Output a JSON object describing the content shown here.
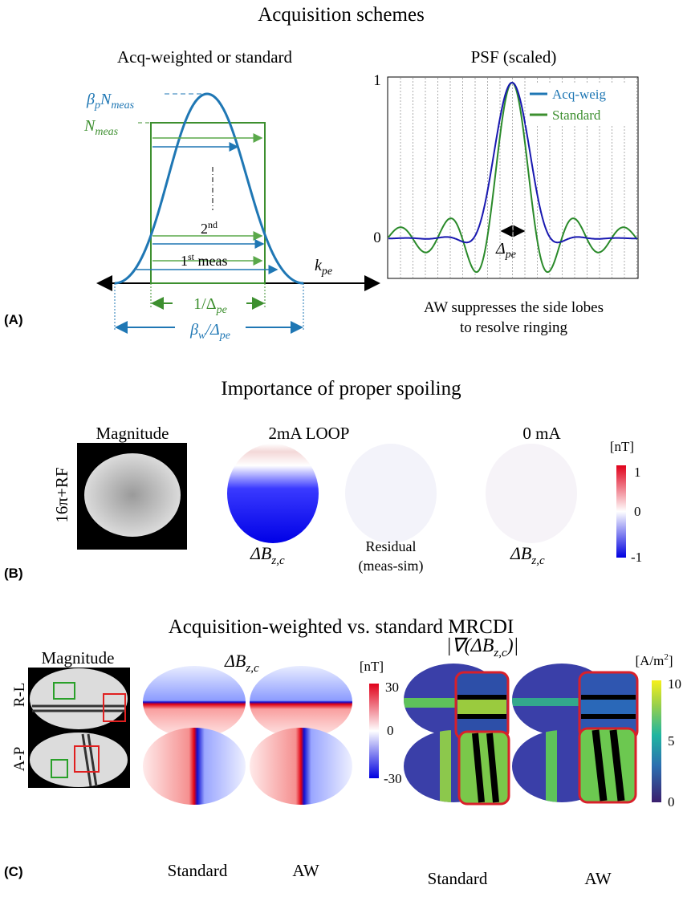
{
  "panel_a": {
    "label": "(A)",
    "title": "Acquisition schemes",
    "scheme": {
      "title": "Acq-weighted or standard",
      "peak_label": [
        "β",
        "p",
        "N",
        "meas"
      ],
      "flat_label": [
        "N",
        "meas"
      ],
      "second": [
        "2",
        "nd"
      ],
      "first": [
        "1",
        "st",
        " meas"
      ],
      "axis_label": [
        "k",
        "pe"
      ],
      "standard_width": [
        "1/Δ",
        "pe"
      ],
      "aw_width": [
        "β",
        "w",
        "/Δ",
        "pe"
      ]
    },
    "psf": {
      "title": "PSF (scaled)",
      "yticks": [
        "1",
        "0"
      ],
      "legend": [
        "Acq-weig",
        "Standard"
      ],
      "spacing": [
        "Δ",
        "pe"
      ],
      "caption": [
        "AW suppresses the side lobes",
        "to resolve ringing"
      ]
    }
  },
  "panel_b": {
    "label": "(B)",
    "title": "Importance of proper spoiling",
    "row_label": "16π+RF",
    "magnitude": "Magnitude",
    "loop_title": "2mA LOOP",
    "zero_title": "0 mA",
    "map_label": [
      "ΔB",
      "z,c"
    ],
    "residual": [
      "Residual",
      "(meas-sim)"
    ],
    "colorbar": {
      "unit": "[nT]",
      "ticks": [
        "1",
        "0",
        "-1"
      ]
    }
  },
  "panel_c": {
    "label": "(C)",
    "title": "Acquisition-weighted vs. standard MRCDI",
    "magnitude": "Magnitude",
    "rows": [
      "R-L",
      "A-P"
    ],
    "map_label": [
      "ΔB",
      "z,c"
    ],
    "grad_label": [
      "|∇(ΔB",
      "z,c",
      ")|"
    ],
    "columns": [
      "Standard",
      "AW"
    ],
    "colorbar": {
      "unit": "[nT]",
      "ticks": [
        "30",
        "0",
        "-30"
      ]
    },
    "grad_colorbar": {
      "unit": [
        "[A/m",
        "2",
        "]"
      ],
      "ticks": [
        "10",
        "5",
        "0"
      ]
    }
  }
}
